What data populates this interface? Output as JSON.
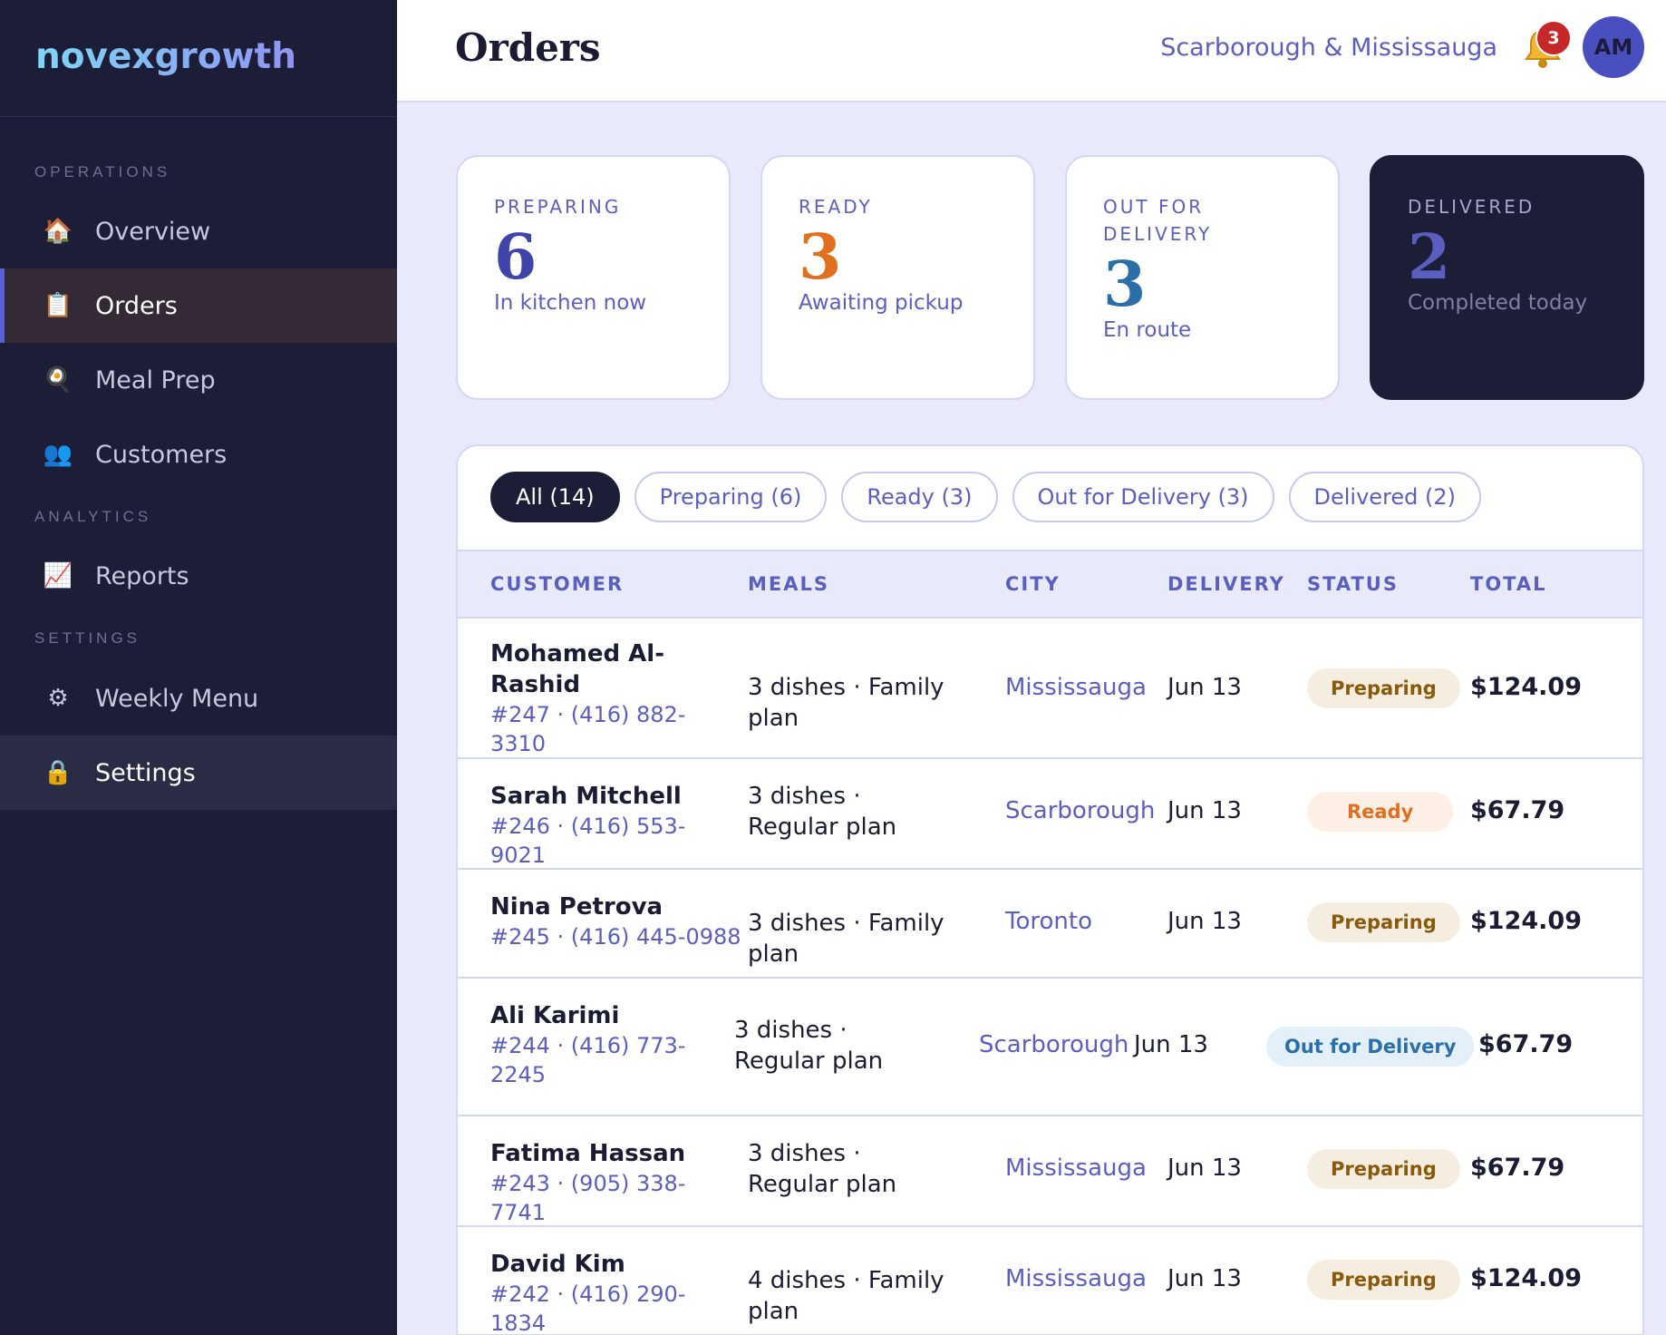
{
  "brand": "novexgrowth",
  "sidebar": {
    "sections": [
      "OPERATIONS",
      "ANALYTICS",
      "SETTINGS"
    ],
    "items": [
      {
        "icon": "🏠",
        "label": "Overview"
      },
      {
        "icon": "📋",
        "label": "Orders"
      },
      {
        "icon": "🍳",
        "label": "Meal Prep"
      },
      {
        "icon": "👥",
        "label": "Customers"
      },
      {
        "icon": "📈",
        "label": "Reports"
      },
      {
        "icon": "⚙",
        "label": "Weekly Menu"
      },
      {
        "icon": "🔒",
        "label": "Settings"
      }
    ],
    "active": "Orders"
  },
  "header": {
    "title": "Orders",
    "region": "Scarborough & Mississauga",
    "notifications": "3",
    "avatar": "AM"
  },
  "stats": [
    {
      "label": "PREPARING",
      "value": "6",
      "sub": "In kitchen now",
      "color": "#3f44a8"
    },
    {
      "label": "READY",
      "value": "3",
      "sub": "Awaiting pickup",
      "color": "#e07020"
    },
    {
      "label": "OUT FOR DELIVERY",
      "value": "3",
      "sub": "En route",
      "color": "#2a6fa8"
    },
    {
      "label": "DELIVERED",
      "value": "2",
      "sub": "Completed today",
      "color": "#5a5fbf"
    }
  ],
  "filters": [
    "All (14)",
    "Preparing (6)",
    "Ready (3)",
    "Out for Delivery (3)",
    "Delivered (2)"
  ],
  "table": {
    "columns": [
      "CUSTOMER",
      "MEALS",
      "CITY",
      "DELIVERY",
      "STATUS",
      "TOTAL"
    ],
    "rows": [
      {
        "name": "Mohamed Al-Rashid",
        "meta": "#247 · (416) 882-3310",
        "meals": "3 dishes · Family plan",
        "city": "Mississauga",
        "date": "Jun 13",
        "status": "Preparing",
        "total": "$124.09"
      },
      {
        "name": "Sarah Mitchell",
        "meta": "#246 · (416) 553-9021",
        "meals": "3 dishes · Regular plan",
        "city": "Scarborough",
        "date": "Jun 13",
        "status": "Ready",
        "total": "$67.79"
      },
      {
        "name": "Nina Petrova",
        "meta": "#245 · (416) 445-0988",
        "meals": "3 dishes · Family plan",
        "city": "Toronto",
        "date": "Jun 13",
        "status": "Preparing",
        "total": "$124.09"
      },
      {
        "name": "Ali Karimi",
        "meta": "#244 · (416) 773-2245",
        "meals": "3 dishes · Regular plan",
        "city": "Scarborough",
        "date": "Jun 13",
        "status": "Out for Delivery",
        "total": "$67.79"
      },
      {
        "name": "Fatima Hassan",
        "meta": "#243 · (905) 338-7741",
        "meals": "3 dishes · Regular plan",
        "city": "Mississauga",
        "date": "Jun 13",
        "status": "Preparing",
        "total": "$67.79"
      },
      {
        "name": "David Kim",
        "meta": "#242 · (416) 290-1834",
        "meals": "4 dishes · Family plan",
        "city": "Mississauga",
        "date": "Jun 13",
        "status": "Preparing",
        "total": "$124.09"
      }
    ]
  }
}
